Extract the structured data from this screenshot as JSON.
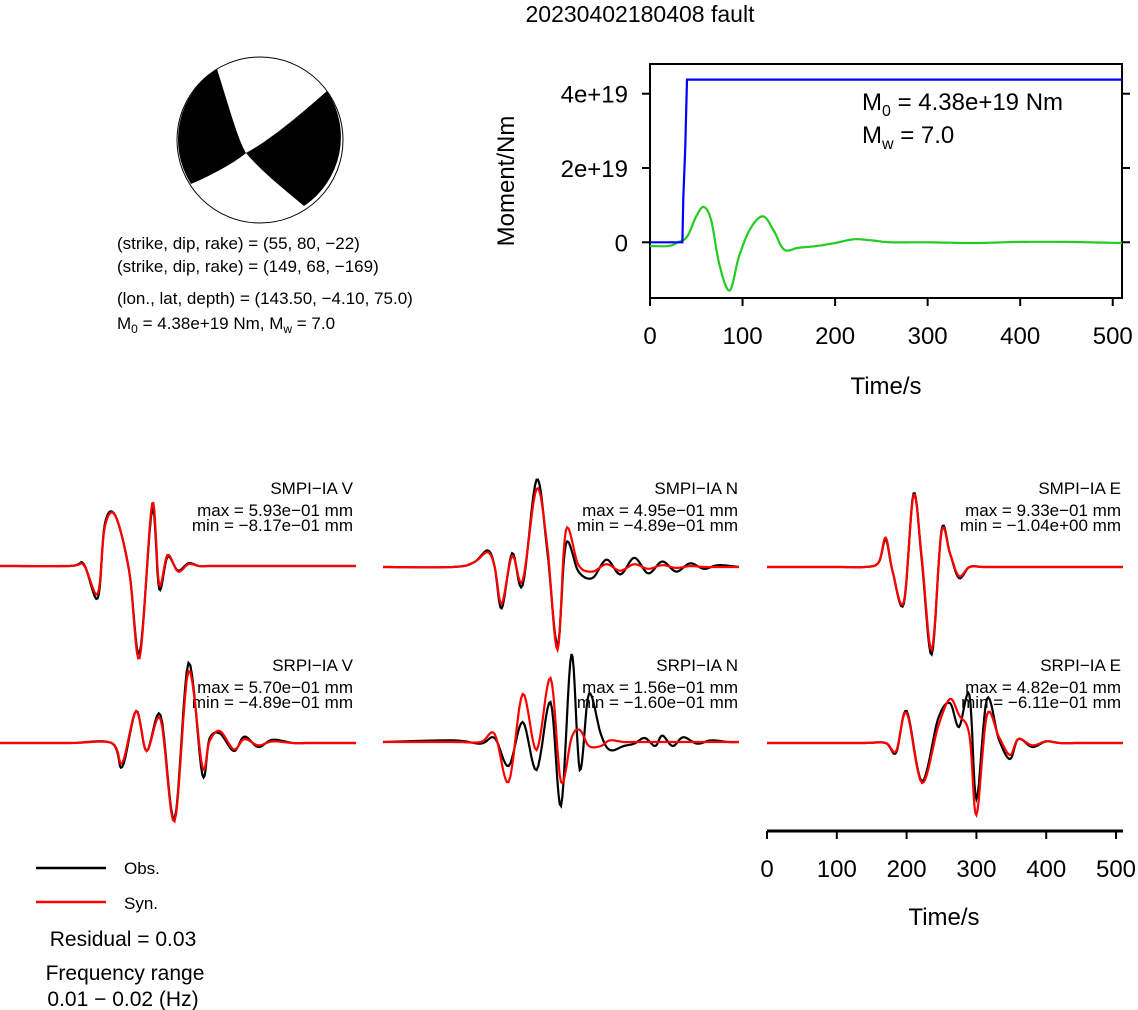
{
  "title": "20230402180408 fault",
  "mechanism": {
    "line1": "(strike, dip, rake) = (55, 80, −22)",
    "line2": "(strike, dip, rake) = (149, 68, −169)",
    "line3": "(lon., lat, depth) = (143.50, −4.10, 75.0)",
    "m0_prefix": "M",
    "m0_sub": "0",
    "m0_rest": " = 4.38e+19 Nm, M",
    "mw_sub": "w",
    "mw_rest": " = 7.0"
  },
  "moment_panel": {
    "ylabel": "Moment/Nm",
    "xlabel": "Time/s",
    "annot_m0_prefix": "M",
    "annot_m0_sub": "0",
    "annot_m0_rest": " = 4.38e+19 Nm",
    "annot_mw_prefix": "M",
    "annot_mw_sub": "w",
    "annot_mw_rest": " = 7.0"
  },
  "legend": {
    "obs": "Obs.",
    "syn": "Syn.",
    "residual": "Residual = 0.03",
    "freq_label": "Frequency range",
    "freq_value": "0.01 − 0.02 (Hz)"
  },
  "wave_axis": {
    "xlabel": "Time/s"
  },
  "colors": {
    "obs": "#000000",
    "syn": "#ff0000",
    "moment": "#0000ff",
    "green": "#22cc22"
  },
  "chart_data": [
    {
      "type": "line",
      "name": "moment",
      "xlim": [
        0,
        510
      ],
      "ylim": [
        -1.5e+19,
        4.8e+19
      ],
      "yticks": [
        0,
        2e+19,
        4e+19
      ],
      "ytick_labels": [
        "0",
        "2e+19",
        "4e+19"
      ],
      "xticks": [
        0,
        100,
        200,
        300,
        400,
        500
      ],
      "xtick_labels": [
        "0",
        "100",
        "200",
        "300",
        "400",
        "500"
      ],
      "series": [
        {
          "role": "moment",
          "x": [
            0,
            35,
            36,
            38,
            40,
            510
          ],
          "y": [
            0,
            0,
            1.2e+19,
            2.5e+19,
            4.38e+19,
            4.38e+19
          ]
        },
        {
          "role": "green",
          "x": [
            0,
            20,
            30,
            40,
            50,
            58,
            66,
            75,
            86,
            96,
            108,
            122,
            134,
            145,
            160,
            180,
            200,
            220,
            240,
            260,
            300,
            350,
            400,
            450,
            510
          ],
          "y": [
            -1e+18,
            -1e+18,
            0,
            1.5e+18,
            7e+18,
            9.5e+18,
            6e+18,
            -6e+18,
            -1.3e+19,
            -4e+18,
            3.5e+18,
            7e+18,
            3e+18,
            -2e+18,
            -1.5e+18,
            -1e+18,
            -2e+17,
            8e+17,
            5e+17,
            0,
            0,
            -2e+17,
            1e+17,
            1e+17,
            -2e+17
          ]
        },
        {
          "role": "red",
          "x": [
            0,
            20,
            30,
            40,
            50,
            58,
            66,
            75,
            86,
            96,
            108,
            122,
            134,
            145,
            160,
            180,
            200,
            220,
            240,
            260,
            300,
            350,
            400,
            450,
            510
          ],
          "y": [
            -1.5e+18,
            -1.5e+18,
            -5e+17,
            1e+18,
            7e+18,
            9e+18,
            5e+18,
            -7e+18,
            -1.4e+19,
            -5e+18,
            5e+18,
            8.5e+18,
            2e+18,
            -4e+18,
            -2e+18,
            -1e+18,
            0,
            6e+17,
            3e+17,
            -2e+17,
            -3e+17,
            -4e+17,
            2e+17,
            0,
            -4e+17
          ]
        }
      ]
    },
    {
      "type": "line",
      "name": "waveforms",
      "xlim": [
        0,
        510
      ],
      "xticks": [
        0,
        100,
        200,
        300,
        400,
        500
      ],
      "xtick_labels": [
        "0",
        "100",
        "200",
        "300",
        "400",
        "500"
      ],
      "traces": [
        {
          "label": "SMPI−IA V",
          "max_text": "max = 5.93e−01 mm",
          "min_text": "min = −8.17e−01 mm",
          "obs": {
            "x": [
              0,
              100,
              120,
              140,
              150,
              165,
              185,
              200,
              218,
              228,
              240,
              255,
              270,
              285,
              300,
              330,
              360,
              400,
              450,
              510
            ],
            "y": [
              0,
              0,
              0.02,
              -0.35,
              0.45,
              0.55,
              -0.05,
              -0.95,
              0.62,
              -0.25,
              0.1,
              -0.05,
              0.03,
              0,
              0,
              0,
              0,
              0,
              0,
              0
            ]
          },
          "syn": {
            "x": [
              0,
              100,
              120,
              140,
              150,
              165,
              185,
              200,
              218,
              228,
              240,
              255,
              270,
              285,
              300,
              330,
              360,
              400,
              450,
              510
            ],
            "y": [
              0,
              0,
              0.01,
              -0.3,
              0.42,
              0.55,
              -0.05,
              -1.0,
              0.68,
              -0.2,
              0.12,
              -0.06,
              0.02,
              0,
              0,
              0,
              0,
              0,
              0,
              0
            ]
          }
        },
        {
          "label": "SMPI−IA N",
          "max_text": "max = 4.95e−01 mm",
          "min_text": "min = −4.89e−01 mm",
          "obs": {
            "x": [
              0,
              100,
              130,
              150,
              160,
              170,
              185,
              200,
              220,
              235,
              250,
              262,
              280,
              300,
              320,
              340,
              360,
              380,
              400,
              420,
              440,
              460,
              480,
              510
            ],
            "y": [
              0,
              0,
              0.05,
              0.18,
              0,
              -0.45,
              0.15,
              -0.2,
              0.95,
              0.2,
              -0.85,
              0.25,
              -0.05,
              -0.12,
              0.08,
              -0.08,
              0.1,
              -0.07,
              0.06,
              -0.05,
              0.04,
              -0.02,
              0.02,
              0
            ]
          },
          "syn": {
            "x": [
              0,
              100,
              130,
              150,
              160,
              170,
              185,
              200,
              220,
              235,
              250,
              262,
              280,
              300,
              320,
              340,
              360,
              380,
              400,
              420,
              440,
              460,
              480,
              510
            ],
            "y": [
              0,
              0,
              0.05,
              0.16,
              0,
              -0.4,
              0.12,
              -0.15,
              0.85,
              0.25,
              -0.9,
              0.4,
              0.02,
              -0.05,
              0.03,
              -0.04,
              0.03,
              -0.02,
              0.02,
              -0.01,
              0.01,
              0,
              0,
              0
            ]
          }
        },
        {
          "label": "SMPI−IA E",
          "max_text": "max = 9.33e−01 mm",
          "min_text": "min = −1.04e+00 mm",
          "obs": {
            "x": [
              0,
              100,
              140,
              160,
              170,
              180,
              196,
              210,
              222,
              236,
              250,
              262,
              275,
              290,
              310,
              340,
              380,
              420,
              460,
              510
            ],
            "y": [
              0,
              0,
              0,
              0.05,
              0.3,
              -0.05,
              -0.4,
              0.8,
              0.05,
              -0.95,
              0.4,
              0.15,
              -0.12,
              0,
              0,
              0,
              0,
              0,
              0,
              0
            ]
          },
          "syn": {
            "x": [
              0,
              100,
              140,
              160,
              170,
              180,
              196,
              210,
              222,
              236,
              250,
              262,
              275,
              290,
              310,
              340,
              380,
              420,
              460,
              510
            ],
            "y": [
              0,
              0,
              0,
              0.05,
              0.32,
              -0.05,
              -0.38,
              0.78,
              0.08,
              -0.9,
              0.38,
              0.15,
              -0.1,
              0,
              0,
              0,
              0,
              0,
              0,
              0
            ]
          }
        },
        {
          "label": "SRPI−IA V",
          "max_text": "max = 5.70e−01 mm",
          "min_text": "min = −4.89e−01 mm",
          "obs": {
            "x": [
              0,
              100,
              160,
              175,
              195,
              210,
              230,
              250,
              270,
              290,
              300,
              315,
              335,
              350,
              370,
              390,
              420,
              440,
              470,
              510
            ],
            "y": [
              0,
              0,
              0,
              -0.3,
              0.4,
              -0.1,
              0.35,
              -0.95,
              1.0,
              -0.4,
              0.05,
              0.12,
              -0.1,
              0.08,
              -0.05,
              0.04,
              0,
              0,
              0,
              0
            ]
          },
          "syn": {
            "x": [
              0,
              100,
              160,
              175,
              195,
              210,
              230,
              250,
              270,
              290,
              300,
              315,
              335,
              350,
              370,
              390,
              420,
              440,
              470,
              510
            ],
            "y": [
              0,
              0,
              0,
              -0.25,
              0.4,
              -0.1,
              0.3,
              -0.98,
              0.9,
              -0.3,
              0.02,
              0.15,
              -0.08,
              0.05,
              -0.03,
              0.02,
              0,
              0,
              0,
              0
            ]
          }
        },
        {
          "label": "SRPI−IA N",
          "max_text": "max = 1.56e−01 mm",
          "min_text": "min = −1.60e−01 mm",
          "obs": {
            "x": [
              0,
              100,
              140,
              160,
              180,
              200,
              220,
              240,
              255,
              270,
              282,
              295,
              312,
              325,
              345,
              360,
              375,
              390,
              400,
              415,
              430,
              450,
              470,
              495,
              510
            ],
            "y": [
              0,
              0.02,
              -0.02,
              0.05,
              -0.3,
              0.25,
              -0.35,
              0.5,
              -0.8,
              1.1,
              -0.35,
              0.6,
              0.1,
              -0.1,
              -0.05,
              -0.02,
              0.05,
              -0.05,
              0.08,
              -0.05,
              0.06,
              -0.02,
              0.02,
              0,
              0
            ]
          },
          "syn": {
            "x": [
              0,
              100,
              140,
              160,
              180,
              200,
              220,
              240,
              255,
              270,
              282,
              295,
              312,
              325,
              345,
              360,
              375,
              390,
              400,
              415,
              430,
              450,
              470,
              495,
              510
            ],
            "y": [
              0,
              0,
              0,
              0.1,
              -0.5,
              0.6,
              -0.1,
              0.8,
              -0.5,
              0.05,
              0.15,
              -0.05,
              -0.05,
              0.02,
              0,
              0,
              0,
              0,
              0,
              0,
              0,
              0,
              0,
              0,
              0
            ]
          }
        },
        {
          "label": "SRPI−IA E",
          "max_text": "max = 4.82e−01 mm",
          "min_text": "min = −6.11e−01 mm",
          "obs": {
            "x": [
              0,
              100,
              140,
              170,
              185,
              200,
              222,
              245,
              262,
              275,
              290,
              300,
              315,
              332,
              348,
              360,
              380,
              400,
              420,
              450,
              510
            ],
            "y": [
              0,
              0,
              0,
              0,
              -0.12,
              0.4,
              -0.48,
              0.3,
              0.5,
              0.2,
              0.6,
              -0.7,
              0.55,
              0.05,
              -0.2,
              0.05,
              -0.05,
              0.02,
              0,
              0,
              0
            ]
          },
          "syn": {
            "x": [
              0,
              100,
              140,
              170,
              185,
              200,
              222,
              245,
              262,
              275,
              290,
              300,
              315,
              332,
              348,
              360,
              380,
              400,
              420,
              450,
              510
            ],
            "y": [
              0,
              0,
              0,
              0,
              -0.1,
              0.38,
              -0.5,
              0.2,
              0.55,
              0.35,
              0.1,
              -0.9,
              0.35,
              0.08,
              -0.15,
              0.05,
              -0.03,
              0.02,
              0,
              0,
              0
            ]
          }
        }
      ]
    }
  ]
}
